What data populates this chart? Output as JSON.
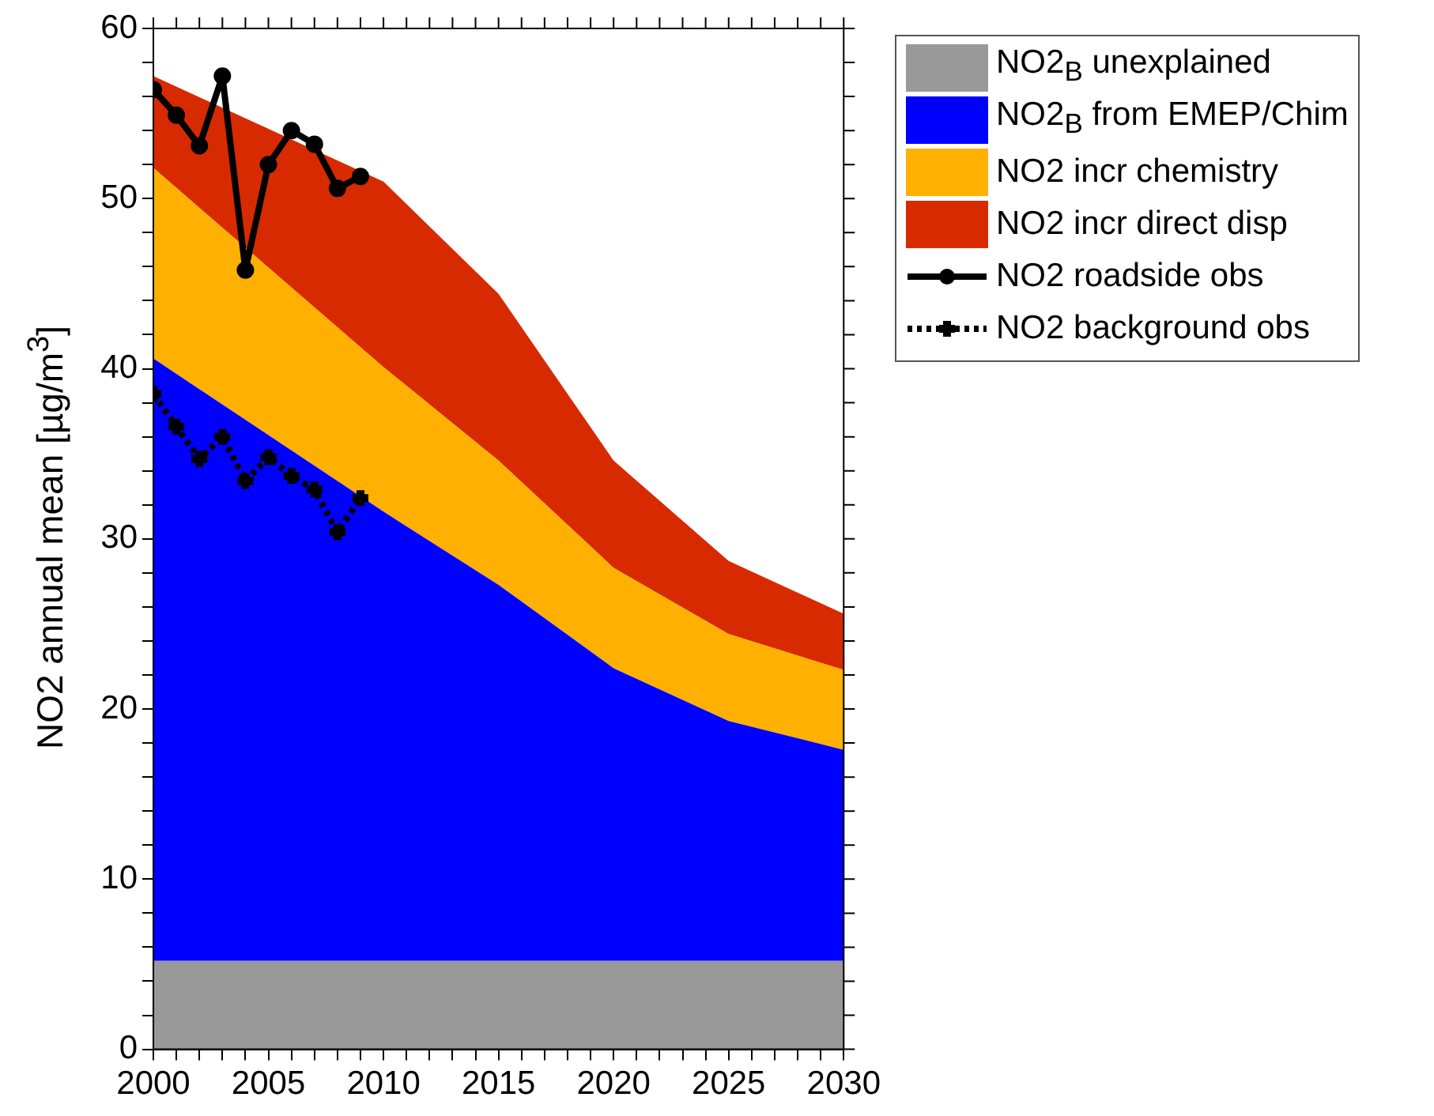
{
  "chart_data": {
    "type": "area",
    "stacked": true,
    "ylabel": "NO2 annual mean [µg/m$^{3}$]",
    "x": [
      2000,
      2010,
      2015,
      2020,
      2025,
      2030
    ],
    "xlim": [
      2000,
      2030
    ],
    "xticks": [
      2000,
      {
        "value": 2001,
        "label": null
      },
      {
        "value": 2002,
        "label": null
      },
      {
        "value": 2003,
        "label": null
      },
      {
        "value": 2004,
        "label": null
      },
      2005,
      {
        "value": 2006,
        "label": null
      },
      {
        "value": 2007,
        "label": null
      },
      {
        "value": 2008,
        "label": null
      },
      {
        "value": 2009,
        "label": null
      },
      2010,
      {
        "value": 2011,
        "label": null
      },
      {
        "value": 2012,
        "label": null
      },
      {
        "value": 2013,
        "label": null
      },
      {
        "value": 2014,
        "label": null
      },
      2015,
      {
        "value": 2016,
        "label": null
      },
      {
        "value": 2017,
        "label": null
      },
      {
        "value": 2018,
        "label": null
      },
      {
        "value": 2019,
        "label": null
      },
      2020,
      {
        "value": 2021,
        "label": null
      },
      {
        "value": 2022,
        "label": null
      },
      {
        "value": 2023,
        "label": null
      },
      {
        "value": 2024,
        "label": null
      },
      2025,
      {
        "value": 2026,
        "label": null
      },
      {
        "value": 2027,
        "label": null
      },
      {
        "value": 2028,
        "label": null
      },
      {
        "value": 2029,
        "label": null
      },
      2030
    ],
    "ylim": [
      0,
      60
    ],
    "yticks": [
      0,
      {
        "value": 2,
        "label": null
      },
      {
        "value": 4,
        "label": null
      },
      {
        "value": 6,
        "label": null
      },
      {
        "value": 8,
        "label": null
      },
      10,
      {
        "value": 12,
        "label": null
      },
      {
        "value": 14,
        "label": null
      },
      {
        "value": 16,
        "label": null
      },
      {
        "value": 18,
        "label": null
      },
      20,
      {
        "value": 22,
        "label": null
      },
      {
        "value": 24,
        "label": null
      },
      {
        "value": 26,
        "label": null
      },
      {
        "value": 28,
        "label": null
      },
      30,
      {
        "value": 32,
        "label": null
      },
      {
        "value": 34,
        "label": null
      },
      {
        "value": 36,
        "label": null
      },
      {
        "value": 38,
        "label": null
      },
      40,
      {
        "value": 42,
        "label": null
      },
      {
        "value": 44,
        "label": null
      },
      {
        "value": 46,
        "label": null
      },
      {
        "value": 48,
        "label": null
      },
      50,
      {
        "value": 52,
        "label": null
      },
      {
        "value": 54,
        "label": null
      },
      {
        "value": 56,
        "label": null
      },
      {
        "value": 58,
        "label": null
      },
      60
    ],
    "grid": false,
    "legend": "top right",
    "series": [
      {
        "name": "NO2$_{B}$ unexplained",
        "color": "#999999",
        "values": [
          5.2,
          5.2,
          5.2,
          5.2,
          5.2,
          5.2
        ]
      },
      {
        "name": "NO2$_{B}$ from EMEP/Chim",
        "color": "#0000ff",
        "values": [
          35.4,
          26.4,
          22.1,
          17.2,
          14.1,
          12.4
        ]
      },
      {
        "name": "NO2 incr chemistry",
        "color": "#ffb000",
        "values": [
          11.2,
          8.5,
          7.3,
          5.9,
          5.1,
          4.7
        ]
      },
      {
        "name": "NO2 incr direct disp",
        "color": "#d82a00",
        "values": [
          5.4,
          10.9,
          9.8,
          6.3,
          4.3,
          3.3
        ]
      },
      {
        "name": "NO2 roadside obs",
        "type": "line",
        "color": "#000000",
        "marker": "circle",
        "line_style": "solid",
        "x": [
          2000,
          2001,
          2002,
          2003,
          2004,
          2005,
          2006,
          2007,
          2008,
          2009
        ],
        "values": [
          56.4,
          54.9,
          53.1,
          57.2,
          45.8,
          52.0,
          54.0,
          53.2,
          50.6,
          51.3
        ]
      },
      {
        "name": "NO2 background obs",
        "type": "line",
        "color": "#000000",
        "marker": "cross",
        "line_style": "dotted",
        "x": [
          2000,
          2001,
          2002,
          2003,
          2004,
          2005,
          2006,
          2007,
          2008,
          2009
        ],
        "values": [
          38.5,
          36.6,
          34.7,
          36.0,
          33.4,
          34.8,
          33.7,
          32.9,
          30.4,
          32.4
        ]
      }
    ]
  }
}
